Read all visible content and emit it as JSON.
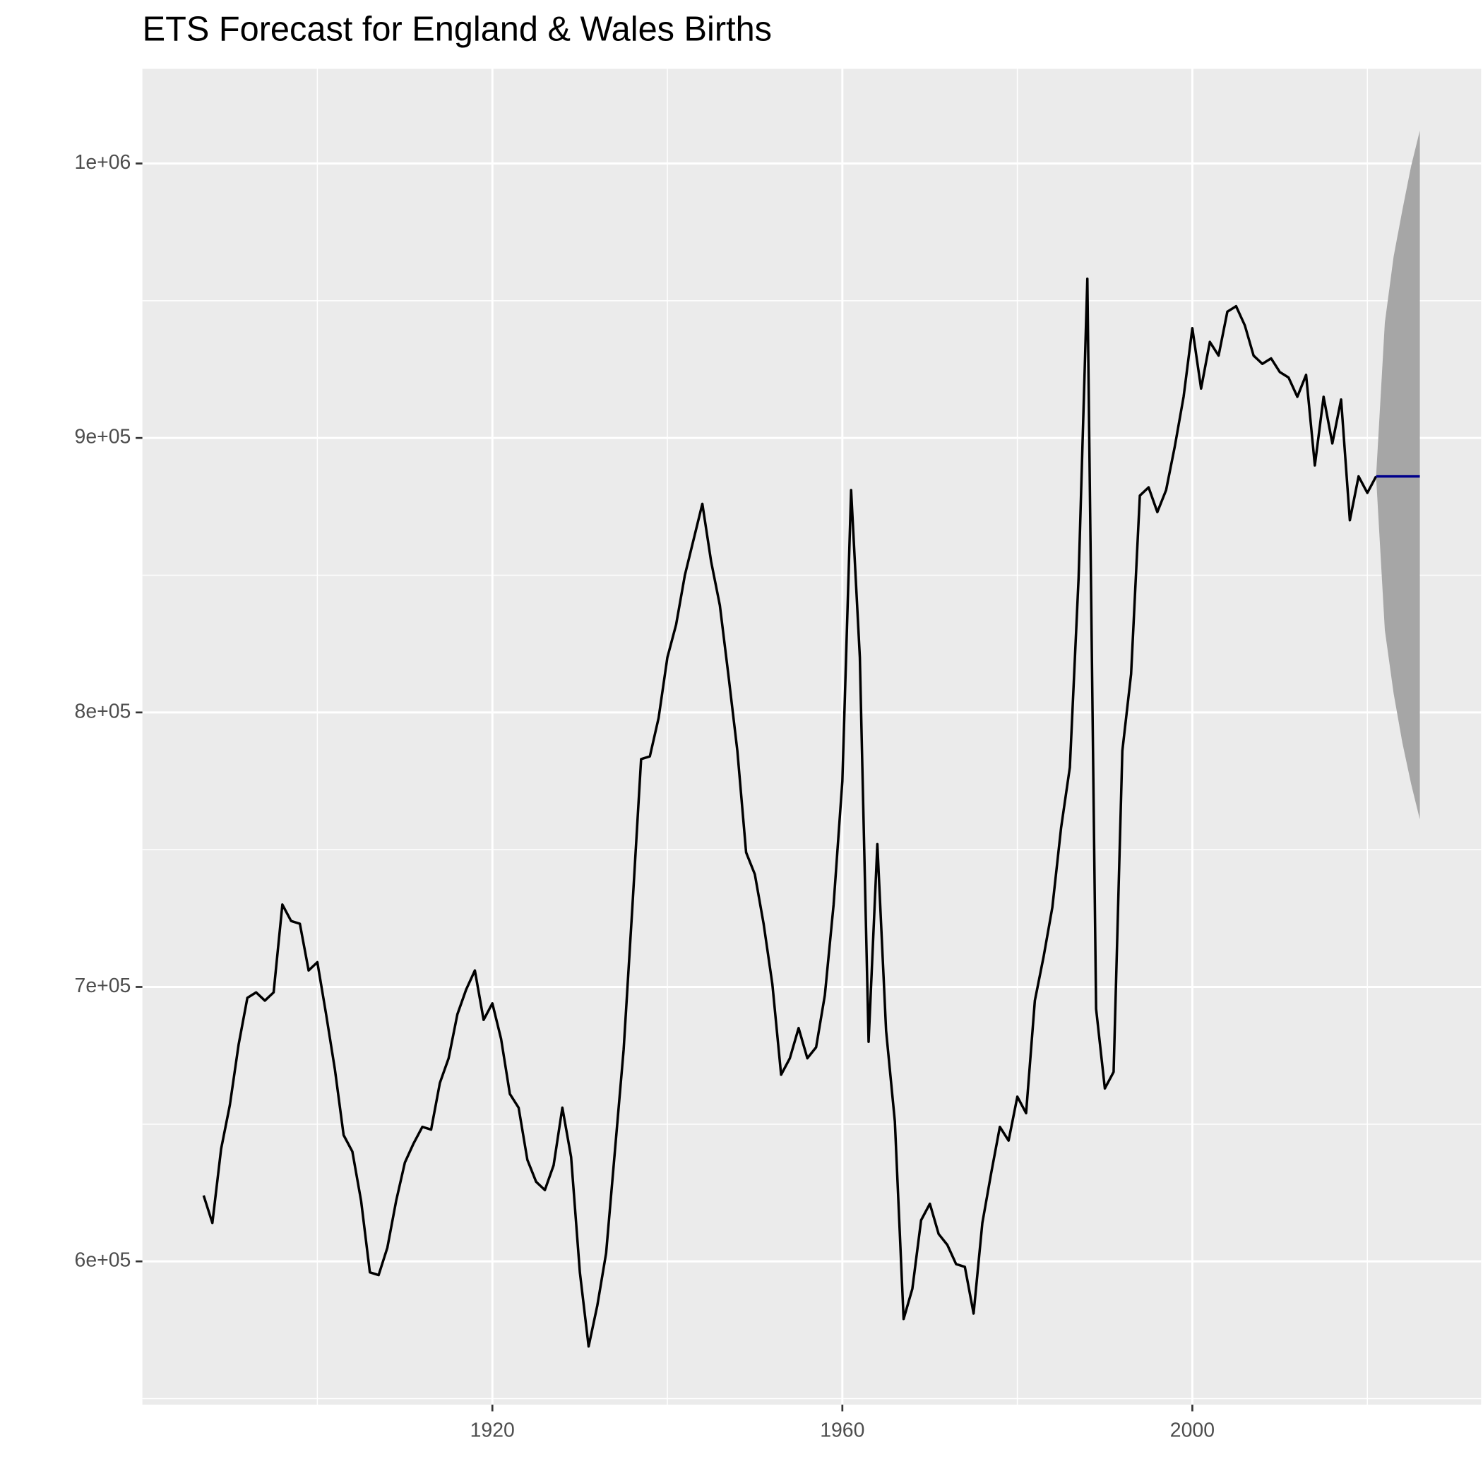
{
  "chart_data": {
    "type": "line",
    "title": "ETS Forecast for England & Wales Births",
    "x": [
      1887,
      1888,
      1889,
      1890,
      1891,
      1892,
      1893,
      1894,
      1895,
      1896,
      1897,
      1898,
      1899,
      1900,
      1901,
      1902,
      1903,
      1904,
      1905,
      1906,
      1907,
      1908,
      1909,
      1910,
      1911,
      1912,
      1913,
      1914,
      1915,
      1916,
      1917,
      1918,
      1919,
      1920,
      1921,
      1922,
      1923,
      1924,
      1925,
      1926,
      1927,
      1928,
      1929,
      1930,
      1931,
      1932,
      1933,
      1934,
      1935,
      1936,
      1937,
      1938,
      1939,
      1940,
      1941,
      1942,
      1943,
      1944,
      1945,
      1946,
      1947,
      1948,
      1949,
      1950,
      1951,
      1952,
      1953,
      1954,
      1955,
      1956,
      1957,
      1958,
      1959,
      1960,
      1961,
      1962,
      1963,
      1964,
      1965,
      1966,
      1967,
      1968,
      1969,
      1970,
      1971,
      1972,
      1973,
      1974,
      1975,
      1976,
      1977,
      1978,
      1979,
      1980,
      1981,
      1982,
      1983,
      1984,
      1985,
      1986,
      1987,
      1988,
      1989,
      1990,
      1991,
      1992,
      1993,
      1994,
      1995,
      1996,
      1997,
      1998,
      1999,
      2000,
      2001,
      2002,
      2003,
      2004,
      2005,
      2006,
      2007,
      2008,
      2009,
      2010,
      2011,
      2012,
      2013,
      2014,
      2015,
      2016,
      2017,
      2018,
      2019,
      2020,
      2021
    ],
    "values": [
      624000,
      614000,
      641000,
      657000,
      679000,
      696000,
      698000,
      695000,
      698000,
      730000,
      724000,
      723000,
      706000,
      709000,
      690000,
      670000,
      646000,
      640000,
      622000,
      596000,
      595000,
      605000,
      622000,
      636000,
      643000,
      649000,
      648000,
      665000,
      674000,
      690000,
      699000,
      706000,
      688000,
      694000,
      681000,
      661000,
      656000,
      637000,
      629000,
      626000,
      635000,
      656000,
      638000,
      596000,
      569000,
      584000,
      603000,
      640000,
      677000,
      729000,
      783000,
      784000,
      798000,
      820000,
      832000,
      850000,
      863000,
      876000,
      855000,
      839000,
      813000,
      786000,
      749000,
      741000,
      723000,
      701000,
      668000,
      674000,
      685000,
      674000,
      678000,
      697000,
      730000,
      775000,
      881000,
      820000,
      680000,
      752000,
      684000,
      651000,
      579000,
      590000,
      615000,
      621000,
      610000,
      606000,
      599000,
      598000,
      581000,
      614000,
      632000,
      649000,
      644000,
      660000,
      654000,
      695000,
      711000,
      729000,
      758000,
      780000,
      849000,
      958000,
      692000,
      663000,
      669000,
      786000,
      814000,
      879000,
      882000,
      873000,
      881000,
      897000,
      915000,
      940000,
      918000,
      935000,
      930000,
      946000,
      948000,
      941000,
      930000,
      927000,
      929000,
      924000,
      922000,
      915000,
      923000,
      890000,
      915000,
      898000,
      914000,
      870000,
      886000,
      880000,
      886000
    ],
    "color": "#000000",
    "forecast": {
      "x": [
        2021,
        2022,
        2023,
        2024,
        2025,
        2026
      ],
      "mean": [
        886000,
        886000,
        886000,
        886000,
        886000,
        886000
      ],
      "lower": [
        886000,
        830000,
        807000,
        789000,
        774000,
        761000
      ],
      "upper": [
        886000,
        942000,
        966000,
        983000,
        999000,
        1012000
      ],
      "color": "#00008b",
      "band_color": "#a6a6a6"
    },
    "xlim": [
      1880,
      2033
    ],
    "ylim": [
      547800,
      1034500
    ],
    "xticks": [
      1920,
      1960,
      2000
    ],
    "xminor": [
      1900,
      1940,
      1980,
      2020
    ],
    "yticks": [
      {
        "value": 600000,
        "label": "6e+05"
      },
      {
        "value": 700000,
        "label": "7e+05"
      },
      {
        "value": 800000,
        "label": "8e+05"
      },
      {
        "value": 900000,
        "label": "9e+05"
      },
      {
        "value": 1000000,
        "label": "1e+06"
      }
    ],
    "yminor": [
      550000,
      650000,
      750000,
      850000,
      950000
    ],
    "grid": true
  }
}
